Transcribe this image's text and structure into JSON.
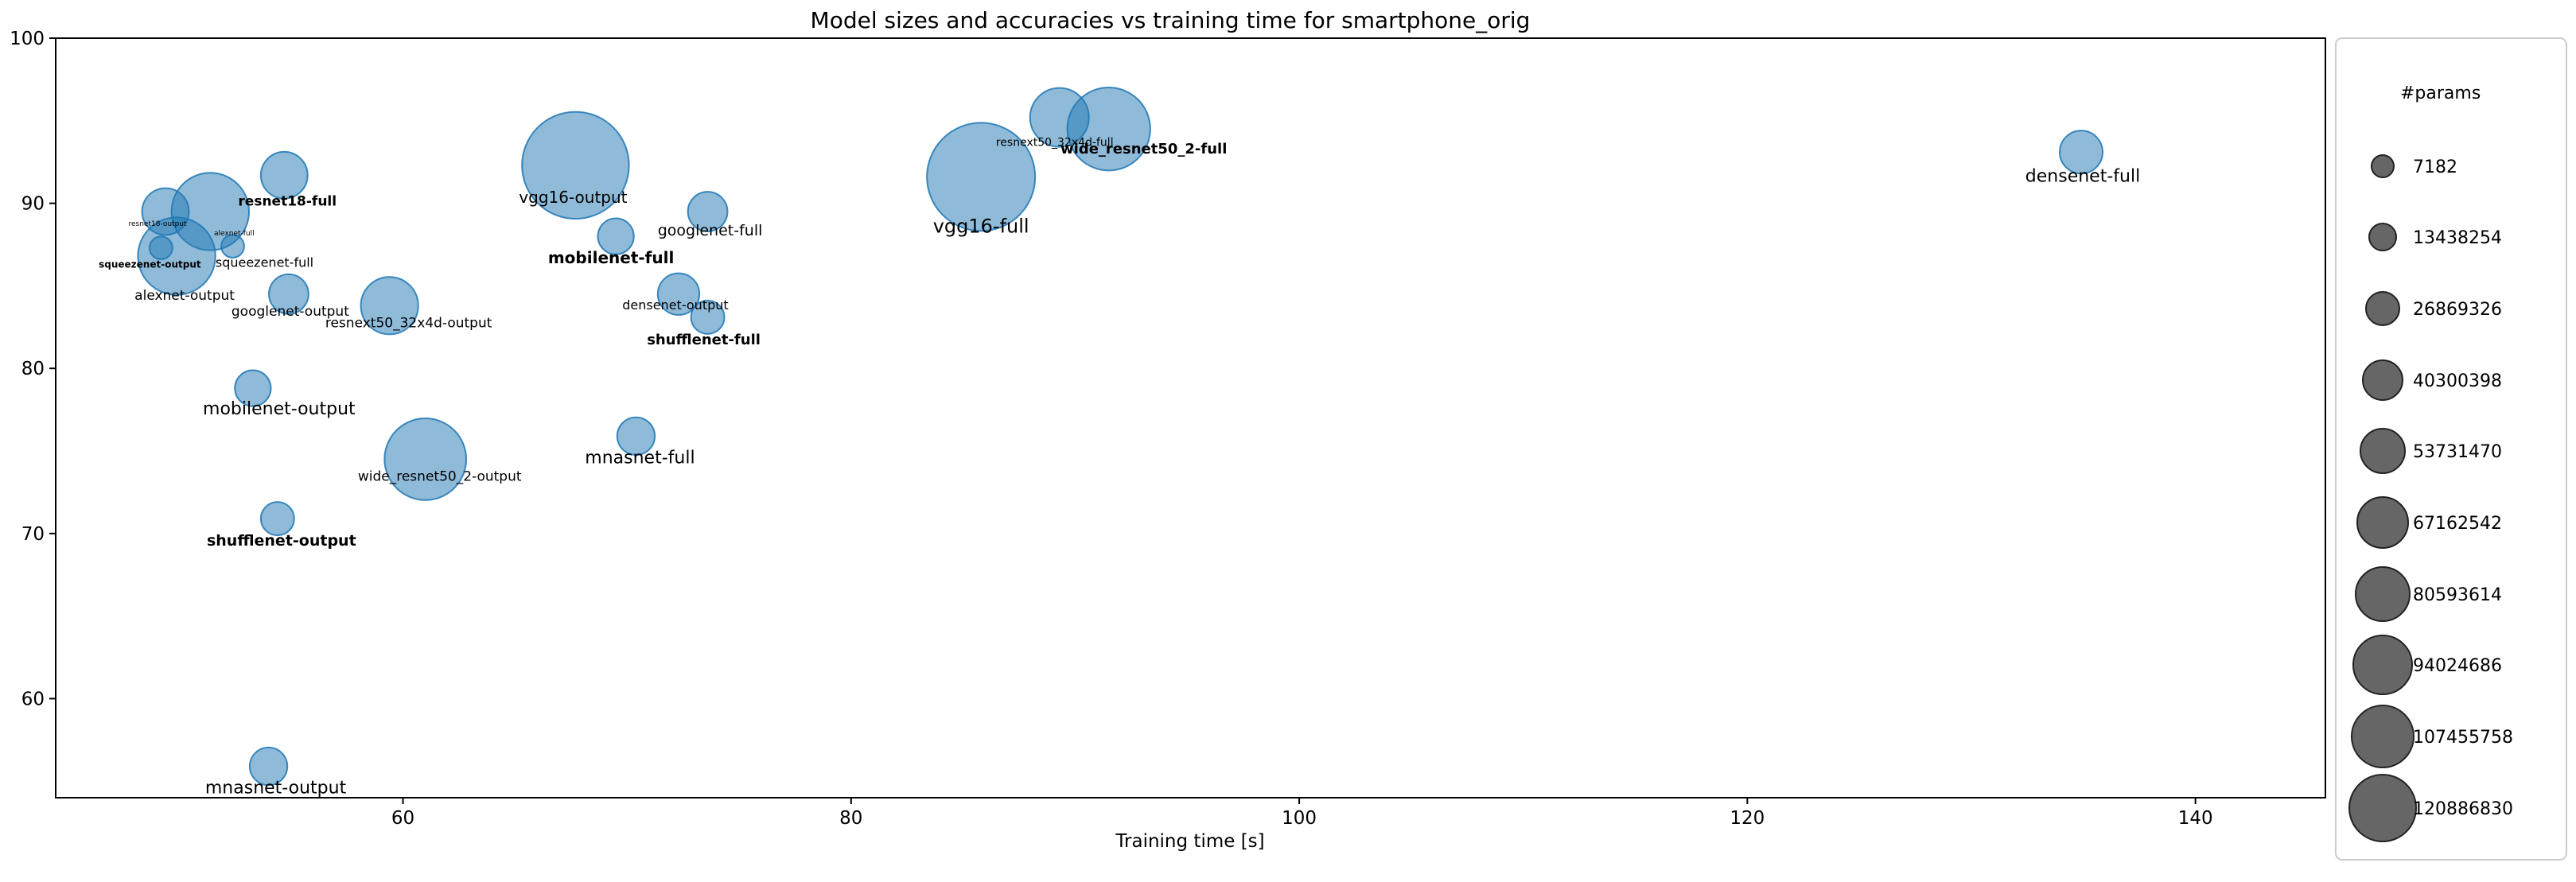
{
  "chart_data": {
    "type": "scatter",
    "title": "Model sizes and accuracies vs training time for smartphone_orig",
    "xlabel": "Training time [s]",
    "ylabel": "",
    "xlim": [
      44.5,
      145.8
    ],
    "ylim": [
      54,
      100
    ],
    "xticks": [
      60,
      80,
      100,
      120,
      140
    ],
    "yticks": [
      60,
      70,
      80,
      90,
      100
    ],
    "grid": false,
    "marker_color": "#1f77b4",
    "legend": {
      "title": "#params",
      "placement": "right",
      "marker_color": "#555555",
      "entries": [
        "7182",
        "13438254",
        "26869326",
        "40300398",
        "53731470",
        "67162542",
        "80593614",
        "94024686",
        "107455758",
        "120886830"
      ]
    },
    "points": [
      {
        "label": "resnet18-output",
        "x": 49.4,
        "y": 89.5,
        "params": 11200000
      },
      {
        "label": "alexnet-full",
        "x": 51.4,
        "y": 89.5,
        "params": 57000000
      },
      {
        "label": "resnet18-full",
        "x": 54.7,
        "y": 91.7,
        "params": 11200000
      },
      {
        "label": "squeezenet-output",
        "x": 49.2,
        "y": 87.3,
        "params": 7182
      },
      {
        "label": "alexnet-output",
        "x": 49.9,
        "y": 86.8,
        "params": 57000000
      },
      {
        "label": "squeezenet-full",
        "x": 52.4,
        "y": 87.4,
        "params": 7182
      },
      {
        "label": "googlenet-output",
        "x": 54.9,
        "y": 84.5,
        "params": 5600000
      },
      {
        "label": "resnext50_32x4d-output",
        "x": 59.4,
        "y": 83.8,
        "params": 23000000
      },
      {
        "label": "vgg16-output",
        "x": 67.7,
        "y": 92.3,
        "params": 134000000
      },
      {
        "label": "mobilenet-full",
        "x": 69.5,
        "y": 88.0,
        "params": 3500000
      },
      {
        "label": "googlenet-full",
        "x": 73.6,
        "y": 89.5,
        "params": 5600000
      },
      {
        "label": "densenet-output",
        "x": 72.3,
        "y": 84.5,
        "params": 7000000
      },
      {
        "label": "shufflenet-full",
        "x": 73.6,
        "y": 83.1,
        "params": 2300000
      },
      {
        "label": "mobilenet-output",
        "x": 53.3,
        "y": 78.8,
        "params": 3500000
      },
      {
        "label": "mnasnet-full",
        "x": 70.4,
        "y": 75.9,
        "params": 4400000
      },
      {
        "label": "wide_resnet50_2-output",
        "x": 61.0,
        "y": 74.5,
        "params": 66000000
      },
      {
        "label": "shufflenet-output",
        "x": 54.4,
        "y": 70.9,
        "params": 2300000
      },
      {
        "label": "mnasnet-output",
        "x": 54.0,
        "y": 55.9,
        "params": 4400000
      },
      {
        "label": "resnext50_32x4d-full",
        "x": 89.3,
        "y": 95.2,
        "params": 25000000
      },
      {
        "label": "wide_resnet50_2-full",
        "x": 91.5,
        "y": 94.5,
        "params": 68900000
      },
      {
        "label": "vgg16-full",
        "x": 85.8,
        "y": 91.6,
        "params": 138000000
      },
      {
        "label": "densenet-full",
        "x": 134.9,
        "y": 93.1,
        "params": 8000000
      }
    ]
  }
}
